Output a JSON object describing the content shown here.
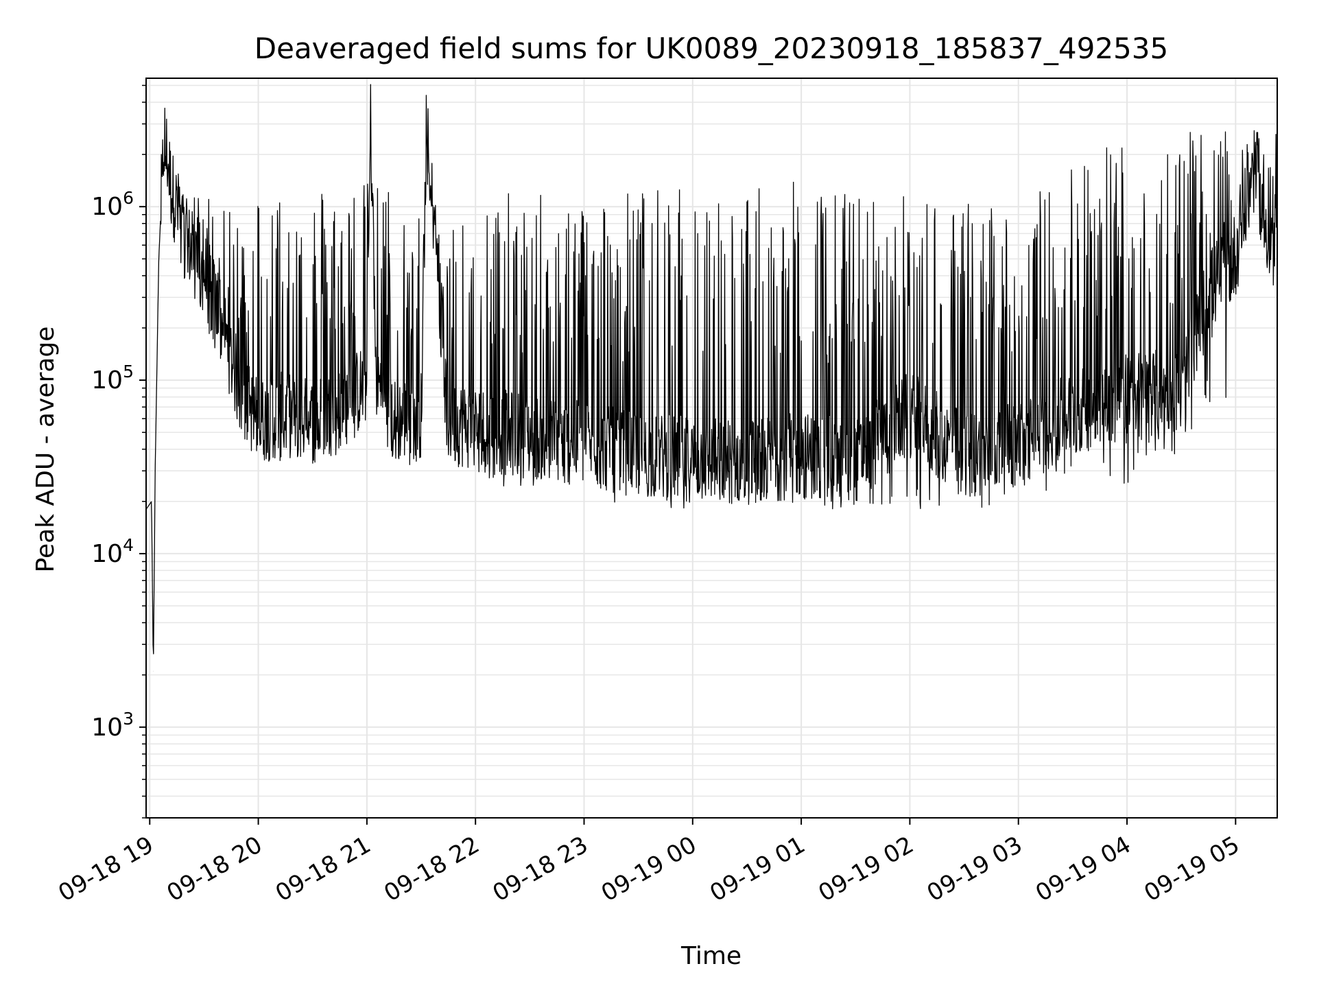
{
  "chart_data": {
    "type": "line",
    "title": "Deaveraged field sums for UK0089_20230918_185837_492535",
    "xlabel": "Time",
    "ylabel": "Peak ADU - average",
    "yscale": "log",
    "ylim": [
      300,
      5500000
    ],
    "xlim": [
      "2023-09-18 18:58",
      "2023-09-19 05:23"
    ],
    "grid": true,
    "line_color": "#000000",
    "grid_color": "#e6e6e6",
    "x_ticks": [
      {
        "t": "2023-09-18 19:00",
        "label": "09-18 19"
      },
      {
        "t": "2023-09-18 20:00",
        "label": "09-18 20"
      },
      {
        "t": "2023-09-18 21:00",
        "label": "09-18 21"
      },
      {
        "t": "2023-09-18 22:00",
        "label": "09-18 22"
      },
      {
        "t": "2023-09-18 23:00",
        "label": "09-18 23"
      },
      {
        "t": "2023-09-19 00:00",
        "label": "09-19 00"
      },
      {
        "t": "2023-09-19 01:00",
        "label": "09-19 01"
      },
      {
        "t": "2023-09-19 02:00",
        "label": "09-19 02"
      },
      {
        "t": "2023-09-19 03:00",
        "label": "09-19 03"
      },
      {
        "t": "2023-09-19 04:00",
        "label": "09-19 04"
      },
      {
        "t": "2023-09-19 05:00",
        "label": "09-19 05"
      }
    ],
    "y_ticks": [
      {
        "value": 1000,
        "base": "10",
        "exp": "3"
      },
      {
        "value": 10000,
        "base": "10",
        "exp": "4"
      },
      {
        "value": 100000,
        "base": "10",
        "exp": "5"
      },
      {
        "value": 1000000,
        "base": "10",
        "exp": "6"
      }
    ],
    "series": [
      {
        "values_note": "",
        "points": [
          [
            "2023-09-18 18:58",
            18000
          ],
          [
            "2023-09-18 19:01",
            20000
          ],
          [
            "2023-09-18 19:02",
            2100
          ],
          [
            "2023-09-18 19:03",
            30000
          ],
          [
            "2023-09-18 19:05",
            500000
          ],
          [
            "2023-09-18 19:08",
            2500000
          ],
          [
            "2023-09-18 19:12",
            1200000
          ],
          [
            "2023-09-18 19:20",
            600000
          ],
          [
            "2023-09-18 19:30",
            400000
          ],
          [
            "2023-09-18 19:40",
            200000
          ],
          [
            "2023-09-18 19:50",
            80000
          ],
          [
            "2023-09-18 20:00",
            55000
          ],
          [
            "2023-09-18 20:15",
            60000
          ],
          [
            "2023-09-18 20:30",
            55000
          ],
          [
            "2023-09-18 20:45",
            65000
          ],
          [
            "2023-09-18 21:00",
            90000
          ],
          [
            "2023-09-18 21:02",
            3100000
          ],
          [
            "2023-09-18 21:05",
            100000
          ],
          [
            "2023-09-18 21:15",
            55000
          ],
          [
            "2023-09-18 21:30",
            60000
          ],
          [
            "2023-09-18 21:33",
            3300000
          ],
          [
            "2023-09-18 21:45",
            55000
          ],
          [
            "2023-09-18 22:00",
            50000
          ],
          [
            "2023-09-18 22:30",
            45000
          ],
          [
            "2023-09-18 23:00",
            40000
          ],
          [
            "2023-09-18 23:30",
            35000
          ],
          [
            "2023-09-19 00:00",
            33000
          ],
          [
            "2023-09-19 00:30",
            32000
          ],
          [
            "2023-09-19 01:00",
            35000
          ],
          [
            "2023-09-19 01:30",
            32000
          ],
          [
            "2023-09-19 02:00",
            60000
          ],
          [
            "2023-09-19 02:30",
            35000
          ],
          [
            "2023-09-19 03:00",
            40000
          ],
          [
            "2023-09-19 03:30",
            60000
          ],
          [
            "2023-09-19 04:00",
            80000
          ],
          [
            "2023-09-19 04:30",
            80000
          ],
          [
            "2023-09-19 04:45",
            300000
          ],
          [
            "2023-09-19 05:00",
            500000
          ],
          [
            "2023-09-19 05:10",
            1500000
          ],
          [
            "2023-09-19 05:23",
            400000
          ]
        ],
        "envelope": {
          "upper_spikes": [
            [
              "2023-09-18 19:10",
              1500000
            ],
            [
              "2023-09-18 19:25",
              1200000
            ],
            [
              "2023-09-18 19:45",
              950000
            ],
            [
              "2023-09-18 20:05",
              1400000
            ],
            [
              "2023-09-18 20:30",
              1400000
            ],
            [
              "2023-09-18 20:45",
              1400000
            ],
            [
              "2023-09-18 21:45",
              1000000
            ],
            [
              "2023-09-18 22:00",
              1500000
            ],
            [
              "2023-09-18 22:20",
              1200000
            ],
            [
              "2023-09-18 22:45",
              1200000
            ],
            [
              "2023-09-18 23:15",
              1300000
            ],
            [
              "2023-09-18 23:40",
              1300000
            ],
            [
              "2023-09-19 00:30",
              1300000
            ],
            [
              "2023-09-19 00:45",
              1400000
            ],
            [
              "2023-09-19 01:10",
              1300000
            ],
            [
              "2023-09-19 01:40",
              1200000
            ],
            [
              "2023-09-19 02:10",
              1200000
            ],
            [
              "2023-09-19 02:40",
              1100000
            ],
            [
              "2023-09-19 03:10",
              1300000
            ],
            [
              "2023-09-19 03:25",
              2100000
            ],
            [
              "2023-09-19 04:10",
              2700000
            ],
            [
              "2023-09-19 05:05",
              2700000
            ]
          ],
          "lower_dips": [
            [
              "2023-09-18 22:30",
              24000
            ],
            [
              "2023-09-18 23:30",
              19000
            ],
            [
              "2023-09-19 00:00",
              18000
            ],
            [
              "2023-09-19 00:50",
              20000
            ],
            [
              "2023-09-19 01:20",
              18000
            ],
            [
              "2023-09-19 02:10",
              18000
            ],
            [
              "2023-09-19 02:45",
              17000
            ],
            [
              "2023-09-19 03:15",
              22000
            ],
            [
              "2023-09-19 04:00",
              25000
            ],
            [
              "2023-09-19 04:30",
              30000
            ]
          ]
        }
      }
    ]
  }
}
